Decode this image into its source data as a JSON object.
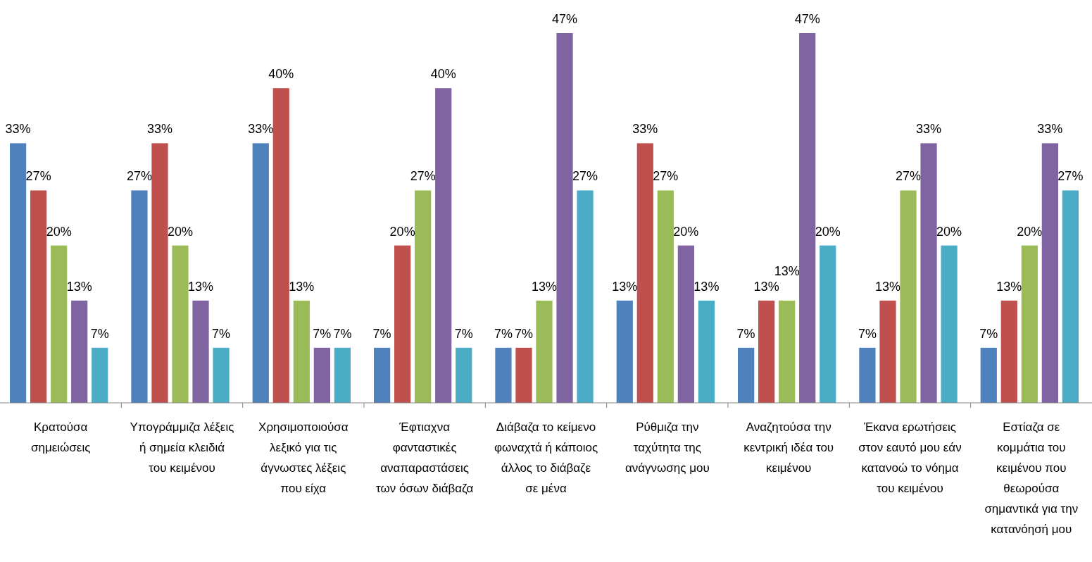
{
  "chart_data": {
    "type": "bar",
    "categories": [
      "Κρατούσα σημειώσεις",
      "Υπογράμμιζα λέξεις ή σημεία κλειδιά του κειμένου",
      "Χρησιμοποιούσα λεξικό για τις άγνωστες λέξεις που είχα",
      "Έφτιαχνα φανταστικές αναπαραστάσεις των όσων διάβαζα",
      "Διάβαζα το κείμενο φωναχτά ή κάποιος άλλος το διάβαζε σε μένα",
      "Ρύθμιζα την ταχύτητα της ανάγνωσης μου",
      "Αναζητούσα την κεντρική ιδέα του κειμένου",
      "Έκανα ερωτήσεις στον εαυτό μου εάν κατανοώ το νόημα του κειμένου",
      "Εστίαζα σε κομμάτια του κειμένου που θεωρούσα σημαντικά για την κατανόησή μου"
    ],
    "series": [
      {
        "color": "#4f81bd",
        "values": [
          33,
          27,
          33,
          7,
          7,
          13,
          7,
          7,
          7
        ],
        "value_labels": [
          "33%",
          "27%",
          "33%",
          "7%",
          "7%",
          "13%",
          "7%",
          "7%",
          "7%"
        ]
      },
      {
        "color": "#c0504d",
        "values": [
          27,
          33,
          40,
          20,
          7,
          33,
          13,
          13,
          13
        ],
        "value_labels": [
          "27%",
          "33%",
          "40%",
          "20%",
          "7%",
          "33%",
          "13%",
          "13%",
          "13%"
        ]
      },
      {
        "color": "#9bbb59",
        "values": [
          20,
          20,
          13,
          27,
          13,
          27,
          13,
          27,
          20
        ],
        "value_labels": [
          "20%",
          "20%",
          "13%",
          "27%",
          "13%",
          "27%",
          "13%",
          "27%",
          "20%"
        ]
      },
      {
        "color": "#8064a2",
        "values": [
          13,
          13,
          7,
          40,
          47,
          20,
          47,
          33,
          33
        ],
        "value_labels": [
          "13%",
          "13%",
          "7%",
          "40%",
          "47%",
          "20%",
          "47%",
          "33%",
          "33%"
        ]
      },
      {
        "color": "#4bacc6",
        "values": [
          7,
          7,
          7,
          7,
          27,
          13,
          20,
          20,
          27
        ],
        "value_labels": [
          "7%",
          "7%",
          "7%",
          "7%",
          "27%",
          "13%",
          "20%",
          "20%",
          "27%"
        ]
      }
    ]
  }
}
